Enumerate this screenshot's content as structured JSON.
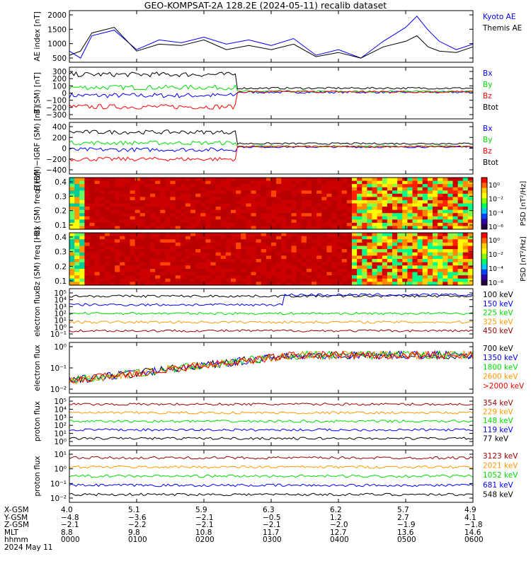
{
  "title": "GEO-KOMPSAT-2A 128.2E (2024-05-11) recalib dataset",
  "colors": {
    "black": "#000000",
    "blue": "#0000ff",
    "green": "#00dd00",
    "red": "#ff0000",
    "orange": "#ff9900",
    "darkred": "#990000",
    "cyan": "#00cccc"
  },
  "chart_data": [
    {
      "type": "line",
      "id": "ae",
      "ylabel": "AE index [nT]",
      "yticks": [
        "2000",
        "1500",
        "1000",
        "500"
      ],
      "ylim": [
        250,
        2100
      ],
      "legend": [
        {
          "name": "Kyoto AE",
          "color": "blue"
        },
        {
          "name": "Themis AE",
          "color": "black"
        }
      ],
      "series": [
        {
          "name": "Kyoto AE",
          "color": "blue",
          "x": [
            0,
            10,
            20,
            40,
            60,
            80,
            100,
            120,
            140,
            160,
            180,
            200,
            220,
            240,
            260,
            280,
            300,
            310,
            320,
            330,
            345,
            360
          ],
          "values": [
            650,
            400,
            1200,
            1400,
            700,
            1050,
            950,
            1150,
            900,
            1050,
            850,
            1100,
            500,
            700,
            400,
            1000,
            1500,
            1900,
            1400,
            1000,
            700,
            900
          ]
        },
        {
          "name": "Themis AE",
          "color": "black",
          "x": [
            0,
            10,
            20,
            40,
            60,
            80,
            100,
            120,
            140,
            160,
            180,
            200,
            220,
            240,
            260,
            280,
            300,
            310,
            320,
            330,
            345,
            360
          ],
          "values": [
            500,
            650,
            1300,
            1500,
            650,
            900,
            850,
            1050,
            700,
            850,
            700,
            900,
            450,
            600,
            400,
            800,
            1000,
            1200,
            800,
            650,
            600,
            800
          ]
        }
      ]
    },
    {
      "type": "line",
      "id": "bgsm",
      "ylabel": "B (SM) [nT]",
      "yticks": [
        "300",
        "200",
        "100",
        "0",
        "−100",
        "−200",
        "−300"
      ],
      "ylim": [
        -320,
        320
      ],
      "legend": [
        {
          "name": "Bx",
          "color": "blue"
        },
        {
          "name": "By",
          "color": "green"
        },
        {
          "name": "Bz",
          "color": "red"
        },
        {
          "name": "Btot",
          "color": "black"
        }
      ]
    },
    {
      "type": "line",
      "id": "bgrf",
      "ylabel": "B (SM)−IGRF (SM) [nT]",
      "yticks": [
        "400",
        "200",
        "0",
        "−200",
        "−400"
      ],
      "ylim": [
        -450,
        430
      ],
      "legend": [
        {
          "name": "Bx",
          "color": "blue"
        },
        {
          "name": "By",
          "color": "green"
        },
        {
          "name": "Bz",
          "color": "red"
        },
        {
          "name": "Btot",
          "color": "black"
        }
      ]
    },
    {
      "type": "heatmap",
      "id": "specx",
      "ylabel": "Bx (SM) freq [Hz]",
      "yticks": [
        "0.4",
        "0.3",
        "0.2",
        "0.1"
      ],
      "ylim": [
        0,
        0.5
      ],
      "colorbar": {
        "label": "PSD [nT²/Hz]",
        "ticks": [
          "10⁰",
          "10⁻²",
          "10⁻⁴",
          "10⁻⁶"
        ]
      }
    },
    {
      "type": "heatmap",
      "id": "specz",
      "ylabel": "Bz (SM) freq [Hz]",
      "yticks": [
        "0.4",
        "0.3",
        "0.2",
        "0.1"
      ],
      "ylim": [
        0,
        0.5
      ],
      "colorbar": {
        "label": "PSD [nT²/Hz]",
        "ticks": [
          "10⁰",
          "10⁻²",
          "10⁻⁴",
          "10⁻⁶"
        ]
      }
    },
    {
      "type": "line",
      "id": "elow",
      "ylabel": "electron flux",
      "yticks": [
        "10⁵",
        "10⁴",
        "10³",
        "10²",
        "10¹",
        "10⁰",
        "10⁻¹"
      ],
      "ylim": [
        -1,
        5
      ],
      "log": true,
      "legend": [
        {
          "name": "100 keV",
          "color": "black"
        },
        {
          "name": "150 keV",
          "color": "blue"
        },
        {
          "name": "225 keV",
          "color": "green"
        },
        {
          "name": "325 keV",
          "color": "orange"
        },
        {
          "name": "450 keV",
          "color": "darkred"
        }
      ]
    },
    {
      "type": "line",
      "id": "ehigh",
      "ylabel": "electron flux",
      "yticks": [
        "10⁰",
        "10⁻¹",
        "10⁻²"
      ],
      "ylim": [
        -2.2,
        0
      ],
      "log": true,
      "legend": [
        {
          "name": "700 keV",
          "color": "black"
        },
        {
          "name": "1350 keV",
          "color": "blue"
        },
        {
          "name": "1800 keV",
          "color": "green"
        },
        {
          "name": "2600 keV",
          "color": "orange"
        },
        {
          "name": ">2000 keV",
          "color": "red"
        }
      ]
    },
    {
      "type": "line",
      "id": "plow",
      "ylabel": "proton flux",
      "yticks": [
        "10⁵",
        "10⁴",
        "10³",
        "10²",
        "10¹",
        "10⁰"
      ],
      "ylim": [
        -0.3,
        5.2
      ],
      "log": true,
      "legend": [
        {
          "name": "354 keV",
          "color": "darkred"
        },
        {
          "name": "229 keV",
          "color": "orange"
        },
        {
          "name": "148 keV",
          "color": "green"
        },
        {
          "name": "119 keV",
          "color": "blue"
        },
        {
          "name": "77 keV",
          "color": "black"
        }
      ]
    },
    {
      "type": "line",
      "id": "phigh",
      "ylabel": "proton flux",
      "yticks": [
        "10¹",
        "10⁰",
        "10⁻¹",
        "10⁻²"
      ],
      "ylim": [
        -2.3,
        1.1
      ],
      "log": true,
      "legend": [
        {
          "name": "3123 keV",
          "color": "darkred"
        },
        {
          "name": "2021 keV",
          "color": "orange"
        },
        {
          "name": "1052 keV",
          "color": "green"
        },
        {
          "name": "681 keV",
          "color": "blue"
        },
        {
          "name": "548 keV",
          "color": "black"
        }
      ]
    }
  ],
  "ephemeris": {
    "labels": [
      "X-GSM",
      "Y-GSM",
      "Z-GSM",
      "MLT",
      "hhmm",
      "2024 May 11"
    ],
    "columns": [
      [
        "4.0",
        "−4.8",
        "−2.1",
        "8.8",
        "0000"
      ],
      [
        "5.1",
        "−3.6",
        "−2.2",
        "9.8",
        "0100"
      ],
      [
        "5.9",
        "−2.1",
        "−2.1",
        "10.8",
        "0200"
      ],
      [
        "6.3",
        "−0.5",
        "−2.1",
        "11.7",
        "0300"
      ],
      [
        "6.2",
        "1.2",
        "−2.0",
        "12.7",
        "0400"
      ],
      [
        "5.7",
        "2.7",
        "−1.9",
        "13.6",
        "0500"
      ],
      [
        "4.9",
        "4.1",
        "−1.8",
        "14.6",
        "0600"
      ]
    ]
  }
}
